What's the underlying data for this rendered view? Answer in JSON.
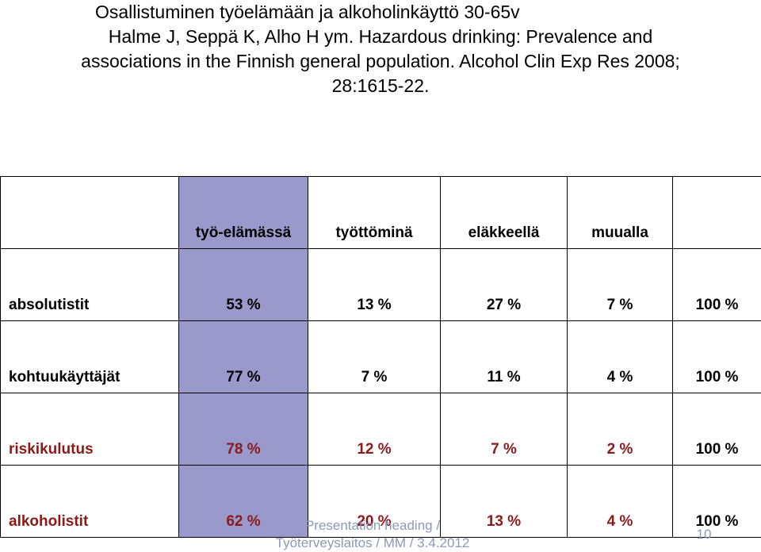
{
  "title": "Osallistuminen työelämään ja alkoholinkäyttö 30-65v",
  "reference_lines": [
    "Halme J, Seppä K, Alho H ym. Hazardous drinking: Prevalence and",
    "associations in the Finnish general population. Alcohol Clin Exp Res 2008;",
    "28:1615-22."
  ],
  "table": {
    "header": [
      "työ-elämässä",
      "työttöminä",
      "eläkkeellä",
      "muualla"
    ],
    "rows": [
      {
        "label": "absolutistit",
        "color": "#000000",
        "cells": [
          "53 %",
          "13 %",
          "27 %",
          "7 %"
        ],
        "total": "100 %"
      },
      {
        "label": "kohtuukäyttäjät",
        "color": "#000000",
        "cells": [
          "77 %",
          "7 %",
          "11 %",
          "4 %"
        ],
        "total": "100 %"
      },
      {
        "label": "riskikulutus",
        "color": "#8b1a1a",
        "cells": [
          "78 %",
          "12 %",
          "7 %",
          "2 %"
        ],
        "total": "100 %"
      },
      {
        "label": "alkoholistit",
        "color": "#8b1a1a",
        "cells": [
          "62 %",
          "20 %",
          "13 %",
          "4 %"
        ],
        "total": "100 %"
      }
    ]
  },
  "footer": {
    "lines": [
      "Presentation heading /",
      "Työterveyslaitos / MM / 3.4.2012"
    ],
    "page": "10"
  }
}
